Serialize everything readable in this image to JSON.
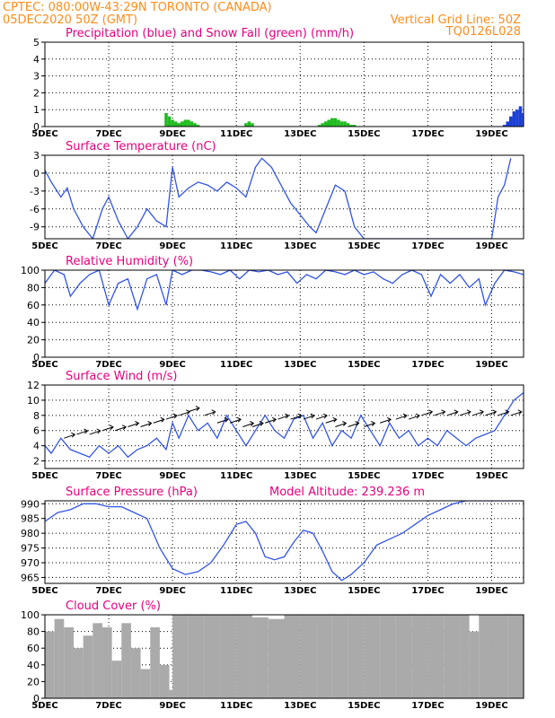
{
  "header": {
    "source_line": "CPTEC:   080:00W-43:29N   TORONTO (CANADA)",
    "date_line": "05DEC2020 50Z (GMT)",
    "grid_note": "Vertical Grid Line: 50Z",
    "code": "TQ0126L028"
  },
  "x_axis": {
    "tick_labels": [
      "5DEC",
      "7DEC",
      "9DEC",
      "11DEC",
      "13DEC",
      "15DEC",
      "17DEC",
      "19DEC"
    ],
    "tick_days": [
      5,
      7,
      9,
      11,
      13,
      15,
      17,
      19
    ],
    "range_days": [
      5,
      20
    ]
  },
  "colors": {
    "precip": "#1a3fd6",
    "snow": "#22bb22",
    "line": "#3355e6",
    "cloud": "#aaaaaa",
    "title": "#e6007e",
    "header": "#ff8c1a"
  },
  "chart_data": [
    {
      "type": "bar",
      "title": "Precipitation (blue) and Snow Fall (green) (mm/h)",
      "ylim": [
        0,
        5
      ],
      "yticks": [
        0,
        1,
        2,
        3,
        4,
        5
      ],
      "series": [
        {
          "name": "Precipitation",
          "x": [
            19.4,
            19.5,
            19.6,
            19.7,
            19.8,
            19.9,
            20.0
          ],
          "values": [
            0.1,
            0.3,
            0.6,
            0.9,
            1.0,
            1.2,
            0.8
          ]
        },
        {
          "name": "Snow Fall",
          "x": [
            8.8,
            8.9,
            9.0,
            9.1,
            9.2,
            9.3,
            9.4,
            9.5,
            9.6,
            9.7,
            9.8,
            11.3,
            11.4,
            11.5,
            13.6,
            13.7,
            13.8,
            13.9,
            14.0,
            14.1,
            14.2,
            14.3,
            14.4,
            14.5,
            14.6,
            14.7
          ],
          "values": [
            0.8,
            0.6,
            0.4,
            0.3,
            0.2,
            0.3,
            0.4,
            0.4,
            0.3,
            0.2,
            0.1,
            0.2,
            0.3,
            0.2,
            0.1,
            0.2,
            0.3,
            0.4,
            0.5,
            0.5,
            0.4,
            0.3,
            0.3,
            0.2,
            0.1,
            0.1
          ]
        }
      ]
    },
    {
      "type": "line",
      "title": "Surface Temperature (nC)",
      "ylim": [
        -11,
        3
      ],
      "yticks": [
        -9,
        -6,
        -3,
        0,
        3
      ],
      "series": [
        {
          "name": "Temperature",
          "x": [
            5.0,
            5.2,
            5.5,
            5.7,
            5.9,
            6.2,
            6.5,
            6.8,
            7.0,
            7.3,
            7.6,
            7.9,
            8.2,
            8.5,
            8.8,
            9.0,
            9.2,
            9.5,
            9.8,
            10.1,
            10.4,
            10.7,
            11.0,
            11.3,
            11.6,
            11.8,
            12.1,
            12.4,
            12.7,
            13.0,
            13.3,
            13.5,
            13.8,
            14.1,
            14.4,
            14.7,
            15.0,
            15.2,
            19.0,
            19.2,
            19.4,
            19.6
          ],
          "values": [
            0.5,
            -1.5,
            -4.0,
            -2.5,
            -6.0,
            -9.0,
            -11.0,
            -6.0,
            -4.0,
            -8.0,
            -11.0,
            -9.0,
            -6.0,
            -8.0,
            -9.0,
            1.0,
            -4.0,
            -2.5,
            -1.5,
            -2.0,
            -3.0,
            -1.5,
            -2.5,
            -4.0,
            1.0,
            2.5,
            1.0,
            -2.0,
            -5.0,
            -7.0,
            -9.0,
            -10.0,
            -6.0,
            -2.0,
            -3.0,
            -9.0,
            -11.0,
            -11.0,
            -11.0,
            -4.0,
            -2.0,
            2.5
          ]
        }
      ]
    },
    {
      "type": "line",
      "title": "Relative Humidity (%)",
      "ylim": [
        0,
        100
      ],
      "yticks": [
        0,
        20,
        40,
        60,
        80,
        100
      ],
      "series": [
        {
          "name": "Relative Humidity",
          "x": [
            5.0,
            5.3,
            5.6,
            5.8,
            6.1,
            6.4,
            6.7,
            7.0,
            7.3,
            7.6,
            7.9,
            8.2,
            8.5,
            8.8,
            9.0,
            9.3,
            9.6,
            9.9,
            10.2,
            10.5,
            10.8,
            11.1,
            11.4,
            11.7,
            12.0,
            12.3,
            12.6,
            12.9,
            13.2,
            13.5,
            13.8,
            14.1,
            14.4,
            14.7,
            15.0,
            15.3,
            15.6,
            15.9,
            16.2,
            16.5,
            16.8,
            17.1,
            17.4,
            17.7,
            18.0,
            18.3,
            18.6,
            18.8,
            19.1,
            19.4,
            19.7,
            20.0
          ],
          "values": [
            85,
            100,
            95,
            70,
            85,
            95,
            100,
            60,
            85,
            90,
            55,
            90,
            95,
            60,
            100,
            95,
            100,
            100,
            98,
            95,
            100,
            90,
            100,
            98,
            100,
            95,
            98,
            85,
            95,
            90,
            100,
            98,
            95,
            100,
            95,
            98,
            90,
            85,
            95,
            100,
            95,
            70,
            95,
            85,
            95,
            80,
            90,
            60,
            85,
            100,
            98,
            95
          ]
        }
      ]
    },
    {
      "type": "line",
      "title": "Surface Wind (m/s)",
      "ylim": [
        1,
        12
      ],
      "yticks": [
        2,
        4,
        6,
        8,
        10,
        12
      ],
      "series": [
        {
          "name": "Wind Speed",
          "x": [
            5.0,
            5.2,
            5.5,
            5.8,
            6.1,
            6.4,
            6.7,
            7.0,
            7.3,
            7.6,
            7.9,
            8.2,
            8.5,
            8.8,
            9.0,
            9.2,
            9.5,
            9.8,
            10.1,
            10.4,
            10.7,
            11.0,
            11.3,
            11.6,
            11.9,
            12.2,
            12.5,
            12.8,
            13.1,
            13.4,
            13.7,
            14.0,
            14.3,
            14.6,
            14.9,
            15.2,
            15.5,
            15.8,
            16.1,
            16.4,
            16.7,
            17.0,
            17.3,
            17.6,
            17.9,
            18.2,
            18.5,
            18.8,
            19.1,
            19.4,
            19.7,
            20.0
          ],
          "values": [
            4,
            3,
            5,
            3.5,
            3,
            2.5,
            4,
            3,
            4,
            2.5,
            3.5,
            4,
            5,
            3.5,
            7,
            5,
            8,
            6,
            7,
            5,
            8,
            6,
            4,
            6,
            8,
            6,
            5,
            7.5,
            8,
            5,
            7,
            4,
            6,
            5,
            8,
            6,
            4,
            7,
            5,
            6,
            4,
            5,
            4,
            6,
            5,
            4,
            5,
            5.5,
            6,
            8,
            10,
            11
          ]
        },
        {
          "name": "Wind Vectors",
          "x": [
            5.6,
            6.0,
            6.4,
            6.8,
            7.2,
            7.6,
            8.0,
            8.4,
            8.8,
            9.2,
            9.5,
            10.0,
            10.4,
            10.8,
            11.2,
            11.5,
            11.9,
            12.3,
            12.7,
            13.1,
            13.5,
            13.8,
            14.1,
            14.5,
            15.0,
            15.5,
            16.0,
            16.4,
            16.8,
            17.2,
            17.6,
            18.0,
            18.4,
            18.8,
            19.2,
            19.6
          ],
          "values": [
            5,
            5.5,
            5.5,
            6,
            6,
            6.5,
            6.5,
            7,
            7.5,
            8,
            8.5,
            8,
            7,
            7,
            6.5,
            6.5,
            7,
            7.5,
            7.5,
            7.5,
            7.5,
            7,
            6.5,
            6.5,
            6.5,
            7,
            7.5,
            7.5,
            8,
            8,
            8,
            8,
            8,
            8,
            8,
            8
          ]
        }
      ]
    },
    {
      "type": "line",
      "title": "Surface Pressure (hPa)",
      "subtitle": "Model Altitude: 239.236  m",
      "ylim": [
        963,
        991
      ],
      "yticks": [
        965,
        970,
        975,
        980,
        985,
        990
      ],
      "series": [
        {
          "name": "Surface Pressure",
          "x": [
            5.0,
            5.4,
            5.8,
            6.2,
            6.6,
            7.0,
            7.4,
            7.8,
            8.2,
            8.6,
            9.0,
            9.4,
            9.8,
            10.2,
            10.6,
            11.0,
            11.3,
            11.6,
            11.9,
            12.2,
            12.5,
            12.8,
            13.1,
            13.4,
            13.7,
            14.0,
            14.3,
            14.6,
            15.0,
            15.4,
            15.8,
            16.2,
            16.6,
            17.0,
            17.4,
            17.8,
            18.2,
            18.6,
            19.0,
            19.4,
            19.8,
            20.0
          ],
          "values": [
            984,
            987,
            988,
            990,
            990,
            989,
            989,
            987,
            985,
            975,
            968,
            966,
            967,
            970,
            976,
            983,
            984,
            980,
            972,
            971,
            972,
            977,
            981,
            980,
            974,
            967,
            964,
            966,
            970,
            976,
            978,
            980,
            983,
            986,
            988,
            990,
            993,
            993,
            994,
            992,
            991,
            991
          ]
        }
      ]
    },
    {
      "type": "area",
      "title": "Cloud Cover (%)",
      "ylim": [
        0,
        100
      ],
      "yticks": [
        0,
        20,
        40,
        60,
        80,
        100
      ],
      "series": [
        {
          "name": "Cloud Cover",
          "x": [
            5.0,
            5.3,
            5.6,
            5.9,
            6.2,
            6.5,
            6.8,
            7.1,
            7.4,
            7.7,
            8.0,
            8.3,
            8.6,
            8.9,
            9.0,
            9.5,
            10.0,
            10.5,
            11.0,
            11.5,
            12.0,
            12.5,
            13.0,
            13.5,
            14.0,
            14.5,
            15.0,
            15.5,
            16.0,
            16.5,
            17.0,
            17.5,
            18.0,
            18.3,
            18.6,
            19.0,
            19.5,
            20.0
          ],
          "values": [
            80,
            95,
            85,
            60,
            75,
            90,
            85,
            45,
            90,
            60,
            35,
            85,
            40,
            10,
            100,
            100,
            100,
            100,
            100,
            97,
            95,
            100,
            100,
            100,
            100,
            100,
            100,
            100,
            100,
            100,
            100,
            100,
            100,
            80,
            100,
            100,
            100,
            100
          ]
        }
      ]
    }
  ],
  "panel_titles": [
    "Precipitation (blue) and Snow Fall (green) (mm/h)",
    "Surface Temperature (nC)",
    "Relative Humidity (%)",
    "Surface Wind (m/s)",
    "Surface Pressure (hPa)",
    "Cloud Cover (%)"
  ],
  "pressure_altitude_label": "Model Altitude: 239.236  m"
}
